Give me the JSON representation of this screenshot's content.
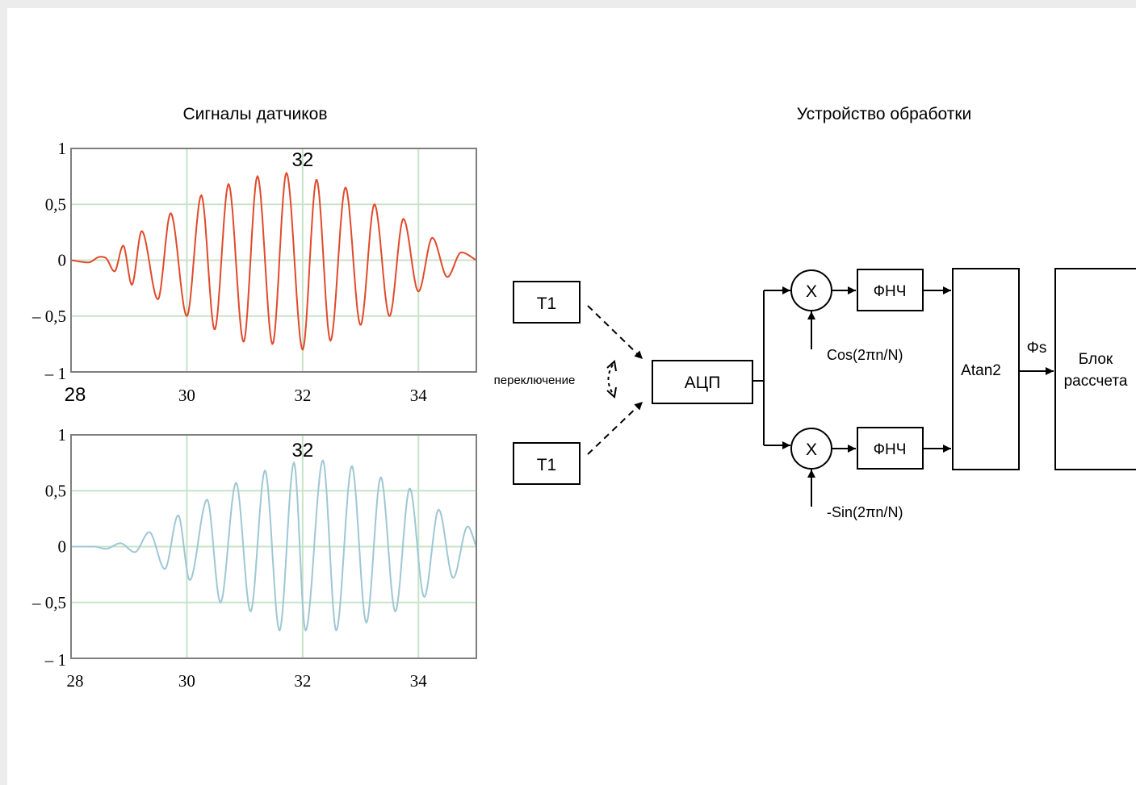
{
  "titles": {
    "signals": "Сигналы датчиков",
    "processing": "Устройство обработки"
  },
  "chart_data": [
    {
      "type": "line",
      "title": "",
      "annotation": "32",
      "x_tick_labels": [
        "28",
        "30",
        "32",
        "34"
      ],
      "y_tick_labels": [
        "1",
        "0,5",
        "0",
        "– 0,5",
        "– 1"
      ],
      "xlim": [
        28,
        35
      ],
      "ylim": [
        -1,
        1
      ],
      "grid": true,
      "color": "#e04a2c",
      "series": [
        {
          "x": [
            28.0,
            28.3,
            28.5,
            28.6,
            28.75,
            28.9,
            29.05,
            29.22,
            29.5,
            29.72,
            30.0,
            30.25,
            30.48,
            30.72,
            30.98,
            31.22,
            31.48,
            31.72,
            32.0,
            32.24,
            32.48,
            32.74,
            33.0,
            33.24,
            33.5,
            33.74,
            34.0,
            34.24,
            34.5,
            34.74,
            35.0
          ],
          "y": [
            0.0,
            -0.02,
            0.03,
            0.02,
            -0.1,
            0.13,
            -0.22,
            0.26,
            -0.35,
            0.42,
            -0.5,
            0.58,
            -0.62,
            0.68,
            -0.73,
            0.75,
            -0.75,
            0.78,
            -0.8,
            0.72,
            -0.72,
            0.65,
            -0.58,
            0.5,
            -0.5,
            0.37,
            -0.28,
            0.2,
            -0.15,
            0.07,
            0.0
          ]
        }
      ]
    },
    {
      "type": "line",
      "title": "",
      "annotation": "32",
      "x_tick_labels": [
        "28",
        "30",
        "32",
        "34"
      ],
      "y_tick_labels": [
        "1",
        "0,5",
        "0",
        "– 0,5",
        "– 1"
      ],
      "xlim": [
        28,
        35
      ],
      "ylim": [
        -1,
        1
      ],
      "grid": true,
      "color": "#9ec7d4",
      "series": [
        {
          "x": [
            28.0,
            28.4,
            28.6,
            28.85,
            29.1,
            29.35,
            29.62,
            29.85,
            30.05,
            30.35,
            30.58,
            30.85,
            31.1,
            31.35,
            31.6,
            31.85,
            32.05,
            32.35,
            32.58,
            32.85,
            33.1,
            33.35,
            33.6,
            33.85,
            34.1,
            34.35,
            34.6,
            34.85,
            35.0
          ],
          "y": [
            0.0,
            0.0,
            -0.02,
            0.03,
            -0.05,
            0.13,
            -0.2,
            0.28,
            -0.3,
            0.42,
            -0.5,
            0.57,
            -0.58,
            0.68,
            -0.75,
            0.75,
            -0.75,
            0.77,
            -0.75,
            0.72,
            -0.68,
            0.62,
            -0.58,
            0.52,
            -0.45,
            0.33,
            -0.28,
            0.18,
            0.0
          ]
        }
      ]
    }
  ],
  "diagram": {
    "blocks": {
      "t1_top": "T1",
      "t1_bottom": "T1",
      "adc": "АЦП",
      "mult_top": "X",
      "mult_bottom": "X",
      "lpf_top": "ФНЧ",
      "lpf_bottom": "ФНЧ",
      "atan2": "Atan2",
      "calc_line1": "Блок",
      "calc_line2": "рассчета"
    },
    "labels": {
      "switching": "переключение",
      "cos": "Cos(2πn/N)",
      "sin": "-Sin(2πn/N)",
      "phase": "Φs"
    }
  }
}
